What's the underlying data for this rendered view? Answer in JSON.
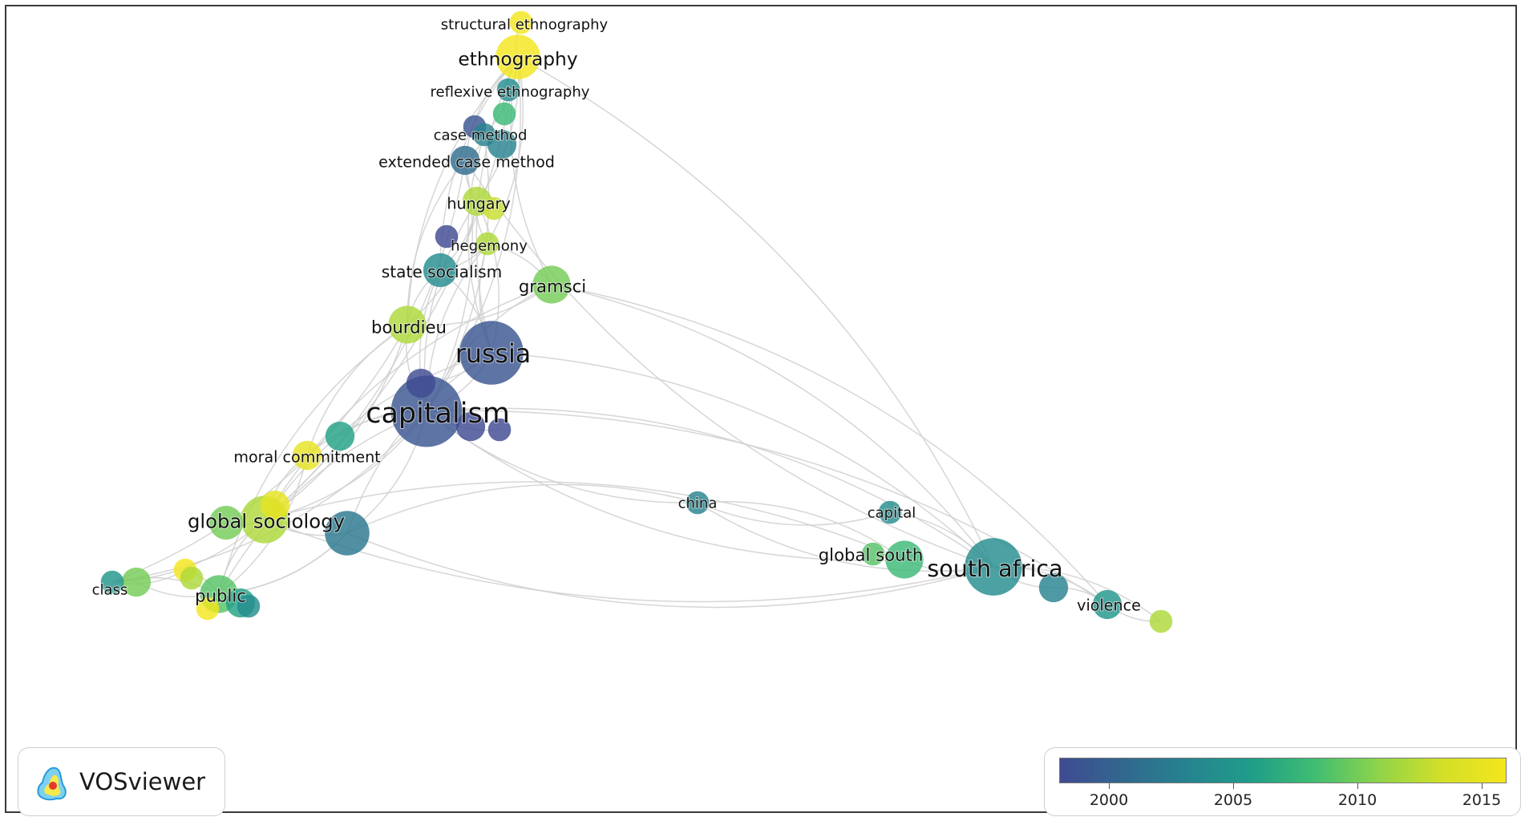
{
  "app": "VOSviewer",
  "legend": {
    "min_year": 1998,
    "max_year": 2016,
    "ticks": [
      "2000",
      "2005",
      "2010",
      "2015"
    ],
    "colormap": [
      "#404a93",
      "#31688e",
      "#26838f",
      "#1f9d89",
      "#3fbd72",
      "#8fd44a",
      "#d3df28",
      "#f4e61d"
    ]
  },
  "nodes": [
    {
      "id": "structural-ethnography",
      "label": "structural ethnography",
      "weight": 1,
      "year": 2016
    },
    {
      "id": "ethnography",
      "label": "ethnography",
      "weight": 6,
      "year": 2016
    },
    {
      "id": "reflexive-ethnography",
      "label": "reflexive ethnography",
      "weight": 1,
      "year": 2004
    },
    {
      "id": "n-small-1",
      "label": "",
      "weight": 1,
      "year": 2008
    },
    {
      "id": "n-small-2",
      "label": "",
      "weight": 1,
      "year": 1999
    },
    {
      "id": "case-method",
      "label": "case method",
      "weight": 1,
      "year": 2003
    },
    {
      "id": "n-small-3",
      "label": "",
      "weight": 2,
      "year": 2003
    },
    {
      "id": "extended-case-method",
      "label": "extended case method",
      "weight": 2,
      "year": 2001
    },
    {
      "id": "hungary",
      "label": "hungary",
      "weight": 2,
      "year": 2012
    },
    {
      "id": "n-small-4",
      "label": "",
      "weight": 1,
      "year": 2013
    },
    {
      "id": "n-small-5",
      "label": "",
      "weight": 1,
      "year": 1998
    },
    {
      "id": "hegemony",
      "label": "hegemony",
      "weight": 1,
      "year": 2012
    },
    {
      "id": "state-socialism",
      "label": "state socialism",
      "weight": 3,
      "year": 2004
    },
    {
      "id": "gramsci",
      "label": "gramsci",
      "weight": 4,
      "year": 2010
    },
    {
      "id": "bourdieu",
      "label": "bourdieu",
      "weight": 4,
      "year": 2012
    },
    {
      "id": "russia",
      "label": "russia",
      "weight": 14,
      "year": 1999
    },
    {
      "id": "n-small-6",
      "label": "",
      "weight": 2,
      "year": 1998
    },
    {
      "id": "capitalism",
      "label": "capitalism",
      "weight": 18,
      "year": 1999
    },
    {
      "id": "n-small-7",
      "label": "",
      "weight": 2,
      "year": 1998
    },
    {
      "id": "n-small-8",
      "label": "",
      "weight": 1,
      "year": 1998
    },
    {
      "id": "n-small-9",
      "label": "",
      "weight": 2,
      "year": 2006
    },
    {
      "id": "moral-commitment",
      "label": "moral commitment",
      "weight": 2,
      "year": 2015
    },
    {
      "id": "n-small-10",
      "label": "",
      "weight": 2,
      "year": 2015
    },
    {
      "id": "global-sociology",
      "label": "global sociology",
      "weight": 7,
      "year": 2012
    },
    {
      "id": "n-small-11",
      "label": "",
      "weight": 3,
      "year": 2010
    },
    {
      "id": "n-small-12",
      "label": "",
      "weight": 6,
      "year": 2002
    },
    {
      "id": "class",
      "label": "class",
      "weight": 1,
      "year": 2005
    },
    {
      "id": "n-small-13",
      "label": "",
      "weight": 2,
      "year": 2010
    },
    {
      "id": "n-small-14",
      "label": "",
      "weight": 1,
      "year": 2016
    },
    {
      "id": "n-small-15",
      "label": "",
      "weight": 1,
      "year": 2012
    },
    {
      "id": "public",
      "label": "public",
      "weight": 4,
      "year": 2009
    },
    {
      "id": "n-small-16",
      "label": "",
      "weight": 1,
      "year": 2016
    },
    {
      "id": "n-small-17",
      "label": "",
      "weight": 2,
      "year": 2006
    },
    {
      "id": "n-small-18",
      "label": "",
      "weight": 1,
      "year": 2004
    },
    {
      "id": "china",
      "label": "china",
      "weight": 1,
      "year": 2003
    },
    {
      "id": "capital",
      "label": "capital",
      "weight": 1,
      "year": 2004
    },
    {
      "id": "global-south",
      "label": "global south",
      "weight": 4,
      "year": 2008
    },
    {
      "id": "n-small-19",
      "label": "",
      "weight": 1,
      "year": 2009
    },
    {
      "id": "south-africa",
      "label": "south africa",
      "weight": 11,
      "year": 2004
    },
    {
      "id": "n-small-20",
      "label": "",
      "weight": 2,
      "year": 2003
    },
    {
      "id": "violence",
      "label": "violence",
      "weight": 2,
      "year": 2005
    },
    {
      "id": "n-small-21",
      "label": "",
      "weight": 1,
      "year": 2012
    }
  ],
  "links": [
    [
      "ethnography",
      "structural-ethnography"
    ],
    [
      "ethnography",
      "reflexive-ethnography"
    ],
    [
      "ethnography",
      "case-method"
    ],
    [
      "ethnography",
      "extended-case-method"
    ],
    [
      "ethnography",
      "hungary"
    ],
    [
      "ethnography",
      "russia"
    ],
    [
      "ethnography",
      "capitalism"
    ],
    [
      "ethnography",
      "gramsci"
    ],
    [
      "ethnography",
      "south-africa"
    ],
    [
      "ethnography",
      "bourdieu"
    ],
    [
      "ethnography",
      "global-sociology"
    ],
    [
      "ethnography",
      "state-socialism"
    ],
    [
      "ethnography",
      "hegemony"
    ],
    [
      "ethnography",
      "n-small-1"
    ],
    [
      "case-method",
      "extended-case-method"
    ],
    [
      "case-method",
      "russia"
    ],
    [
      "case-method",
      "capitalism"
    ],
    [
      "extended-case-method",
      "hungary"
    ],
    [
      "extended-case-method",
      "capitalism"
    ],
    [
      "extended-case-method",
      "bourdieu"
    ],
    [
      "extended-case-method",
      "global-sociology"
    ],
    [
      "extended-case-method",
      "south-africa"
    ],
    [
      "hungary",
      "russia"
    ],
    [
      "hungary",
      "capitalism"
    ],
    [
      "hungary",
      "state-socialism"
    ],
    [
      "hungary",
      "hegemony"
    ],
    [
      "hungary",
      "bourdieu"
    ],
    [
      "hegemony",
      "capitalism"
    ],
    [
      "hegemony",
      "gramsci"
    ],
    [
      "hegemony",
      "russia"
    ],
    [
      "hegemony",
      "state-socialism"
    ],
    [
      "state-socialism",
      "capitalism"
    ],
    [
      "state-socialism",
      "russia"
    ],
    [
      "state-socialism",
      "bourdieu"
    ],
    [
      "gramsci",
      "bourdieu"
    ],
    [
      "gramsci",
      "capitalism"
    ],
    [
      "gramsci",
      "south-africa"
    ],
    [
      "gramsci",
      "global-sociology"
    ],
    [
      "gramsci",
      "violence"
    ],
    [
      "bourdieu",
      "capitalism"
    ],
    [
      "bourdieu",
      "global-sociology"
    ],
    [
      "bourdieu",
      "public"
    ],
    [
      "bourdieu",
      "class"
    ],
    [
      "bourdieu",
      "moral-commitment"
    ],
    [
      "russia",
      "capitalism"
    ],
    [
      "russia",
      "global-sociology"
    ],
    [
      "russia",
      "south-africa"
    ],
    [
      "russia",
      "n-small-12"
    ],
    [
      "russia",
      "n-small-6"
    ],
    [
      "capitalism",
      "moral-commitment"
    ],
    [
      "capitalism",
      "global-sociology"
    ],
    [
      "capitalism",
      "public"
    ],
    [
      "capitalism",
      "class"
    ],
    [
      "capitalism",
      "china"
    ],
    [
      "capitalism",
      "south-africa"
    ],
    [
      "capitalism",
      "global-south"
    ],
    [
      "capitalism",
      "n-small-12"
    ],
    [
      "capitalism",
      "n-small-9"
    ],
    [
      "capitalism",
      "n-small-7"
    ],
    [
      "capitalism",
      "n-small-8"
    ],
    [
      "capitalism",
      "violence"
    ],
    [
      "moral-commitment",
      "global-sociology"
    ],
    [
      "moral-commitment",
      "public"
    ],
    [
      "global-sociology",
      "public"
    ],
    [
      "global-sociology",
      "class"
    ],
    [
      "global-sociology",
      "n-small-12"
    ],
    [
      "global-sociology",
      "n-small-11"
    ],
    [
      "global-sociology",
      "south-africa"
    ],
    [
      "global-sociology",
      "global-south"
    ],
    [
      "public",
      "class"
    ],
    [
      "public",
      "n-small-13"
    ],
    [
      "public",
      "n-small-14"
    ],
    [
      "public",
      "n-small-17"
    ],
    [
      "public",
      "n-small-12"
    ],
    [
      "class",
      "n-small-13"
    ],
    [
      "class",
      "n-small-14"
    ],
    [
      "n-small-12",
      "public"
    ],
    [
      "n-small-12",
      "south-africa"
    ],
    [
      "n-small-12",
      "china"
    ],
    [
      "china",
      "south-africa"
    ],
    [
      "china",
      "global-south"
    ],
    [
      "china",
      "capital"
    ],
    [
      "capital",
      "south-africa"
    ],
    [
      "global-south",
      "south-africa"
    ],
    [
      "south-africa",
      "violence"
    ],
    [
      "south-africa",
      "n-small-20"
    ],
    [
      "south-africa",
      "n-small-21"
    ],
    [
      "violence",
      "n-small-21"
    ],
    [
      "n-small-20",
      "violence"
    ]
  ]
}
